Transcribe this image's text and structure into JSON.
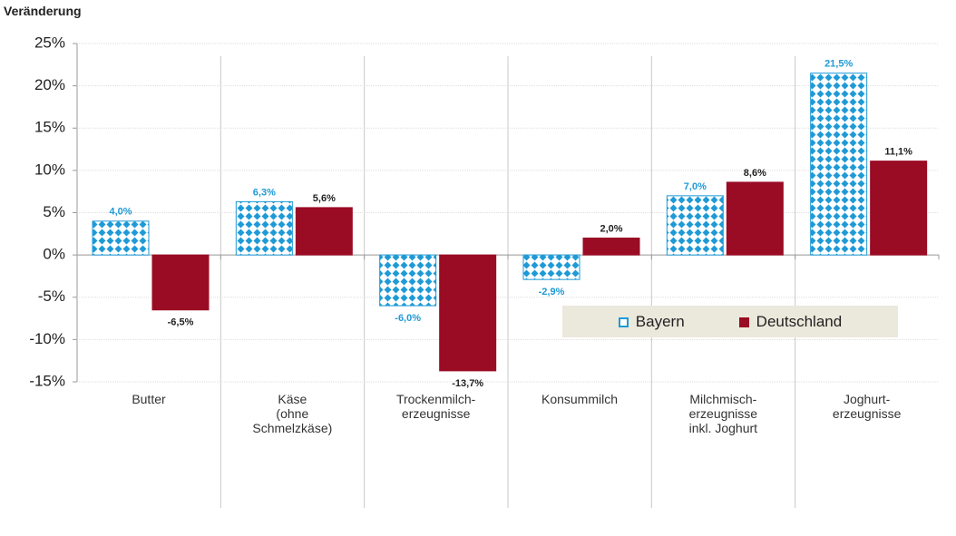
{
  "chart_data": {
    "type": "bar",
    "y_label": "Veränderung",
    "categories": [
      "Butter",
      "Käse\n(ohne\nSchmelzkäse)",
      "Trockenmilch-\nerzeugnisse",
      "Konsummilch",
      "Milchmisch-\nerzeugnisse\ninkl. Joghurt",
      "Joghurt-\nerzeugnisse"
    ],
    "series": [
      {
        "name": "Bayern",
        "color": "#1f9ad6",
        "values": [
          4.0,
          6.3,
          -6.0,
          -2.9,
          7.0,
          21.5
        ],
        "value_labels": [
          "4,0%",
          "6,3%",
          "-6,0%",
          "-2,9%",
          "7,0%",
          "21,5%"
        ]
      },
      {
        "name": "Deutschland",
        "color": "#9a0b24",
        "values": [
          -6.5,
          5.6,
          -13.7,
          2.0,
          8.6,
          11.1
        ],
        "value_labels": [
          "-6,5%",
          "5,6%",
          "-13,7%",
          "2,0%",
          "8,6%",
          "11,1%"
        ]
      }
    ],
    "ylim": [
      -15,
      25
    ],
    "yticks": [
      {
        "value": -15,
        "label": "-15%"
      },
      {
        "value": -10,
        "label": "-10%"
      },
      {
        "value": -5,
        "label": "-5%"
      },
      {
        "value": 0,
        "label": "0%"
      },
      {
        "value": 5,
        "label": "5%"
      },
      {
        "value": 10,
        "label": "10%"
      },
      {
        "value": 15,
        "label": "15%"
      },
      {
        "value": 20,
        "label": "20%"
      },
      {
        "value": 25,
        "label": "25%"
      }
    ],
    "grid": true
  }
}
